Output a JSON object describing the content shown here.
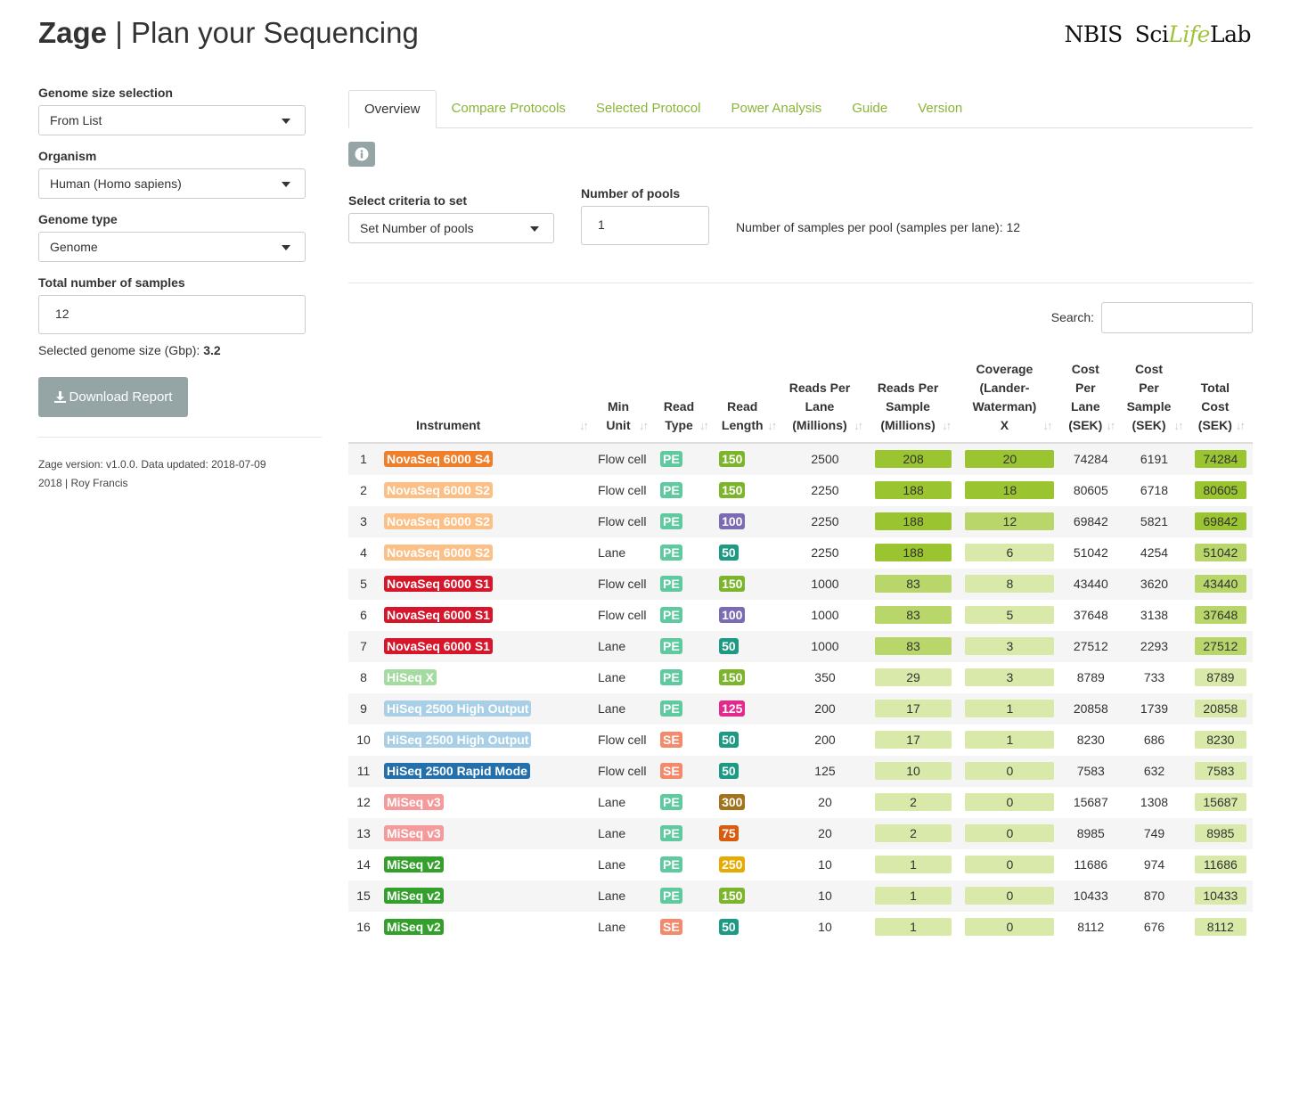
{
  "header": {
    "app_name": "Zage",
    "separator": " | ",
    "subtitle": "Plan your Sequencing",
    "logo_nbis": "NBIS",
    "logo_sci": "Sci",
    "logo_life": "Life",
    "logo_lab": "Lab"
  },
  "sidebar": {
    "genome_size_label": "Genome size selection",
    "genome_size_value": "From List",
    "organism_label": "Organism",
    "organism_value": "Human (Homo sapiens)",
    "genome_type_label": "Genome type",
    "genome_type_value": "Genome",
    "samples_label": "Total number of samples",
    "samples_value": "12",
    "genome_size_text": "Selected genome size (Gbp): ",
    "genome_size_number": "3.2",
    "download_label": "Download Report",
    "version_line1": "Zage version: v1.0.0. Data updated: 2018-07-09",
    "version_line2": "2018 | Roy Francis"
  },
  "tabs": [
    "Overview",
    "Compare Protocols",
    "Selected Protocol",
    "Power Analysis",
    "Guide",
    "Version"
  ],
  "controls": {
    "criteria_label": "Select criteria to set",
    "criteria_value": "Set Number of pools",
    "pools_label": "Number of pools",
    "pools_value": "1",
    "pool_note": "Number of samples per pool (samples per lane): 12"
  },
  "search_label": "Search:",
  "table": {
    "headers": [
      "Instrument",
      "Min Unit",
      "Read Type",
      "Read Length",
      "Reads Per Lane (Millions)",
      "Reads Per Sample (Millions)",
      "Coverage (Lander-Waterman) X",
      "Cost Per Lane (SEK)",
      "Cost Per Sample (SEK)",
      "Total Cost (SEK)"
    ],
    "rows": [
      {
        "idx": "1",
        "instrument": "NovaSeq 6000 S4",
        "inst_color": "#f07f2a",
        "min_unit": "Flow cell",
        "read_type": "PE",
        "rt_color": "#5fcaa0",
        "read_length": "150",
        "rl_color": "#7cb52b",
        "reads_per_lane": "2500",
        "reads_per_sample": "208",
        "rps_level": 1,
        "coverage": "20",
        "cov_level": 1,
        "cost_per_lane": "74284",
        "cost_per_sample": "6191",
        "total_cost": "74284",
        "tc_level": 1
      },
      {
        "idx": "2",
        "instrument": "NovaSeq 6000 S2",
        "inst_color": "#fcbf86",
        "min_unit": "Flow cell",
        "read_type": "PE",
        "rt_color": "#5fcaa0",
        "read_length": "150",
        "rl_color": "#7cb52b",
        "reads_per_lane": "2250",
        "reads_per_sample": "188",
        "rps_level": 1,
        "coverage": "18",
        "cov_level": 1,
        "cost_per_lane": "80605",
        "cost_per_sample": "6718",
        "total_cost": "80605",
        "tc_level": 1
      },
      {
        "idx": "3",
        "instrument": "NovaSeq 6000 S2",
        "inst_color": "#fcbf86",
        "min_unit": "Flow cell",
        "read_type": "PE",
        "rt_color": "#5fcaa0",
        "read_length": "100",
        "rl_color": "#7b6bb2",
        "reads_per_lane": "2250",
        "reads_per_sample": "188",
        "rps_level": 1,
        "coverage": "12",
        "cov_level": 2,
        "cost_per_lane": "69842",
        "cost_per_sample": "5821",
        "total_cost": "69842",
        "tc_level": 1
      },
      {
        "idx": "4",
        "instrument": "NovaSeq 6000 S2",
        "inst_color": "#fcbf86",
        "min_unit": "Lane",
        "read_type": "PE",
        "rt_color": "#5fcaa0",
        "read_length": "50",
        "rl_color": "#1c9a84",
        "reads_per_lane": "2250",
        "reads_per_sample": "188",
        "rps_level": 1,
        "coverage": "6",
        "cov_level": 3,
        "cost_per_lane": "51042",
        "cost_per_sample": "4254",
        "total_cost": "51042",
        "tc_level": 2
      },
      {
        "idx": "5",
        "instrument": "NovaSeq 6000 S1",
        "inst_color": "#d6162a",
        "min_unit": "Flow cell",
        "read_type": "PE",
        "rt_color": "#5fcaa0",
        "read_length": "150",
        "rl_color": "#7cb52b",
        "reads_per_lane": "1000",
        "reads_per_sample": "83",
        "rps_level": 2,
        "coverage": "8",
        "cov_level": 3,
        "cost_per_lane": "43440",
        "cost_per_sample": "3620",
        "total_cost": "43440",
        "tc_level": 2
      },
      {
        "idx": "6",
        "instrument": "NovaSeq 6000 S1",
        "inst_color": "#d6162a",
        "min_unit": "Flow cell",
        "read_type": "PE",
        "rt_color": "#5fcaa0",
        "read_length": "100",
        "rl_color": "#7b6bb2",
        "reads_per_lane": "1000",
        "reads_per_sample": "83",
        "rps_level": 2,
        "coverage": "5",
        "cov_level": 3,
        "cost_per_lane": "37648",
        "cost_per_sample": "3138",
        "total_cost": "37648",
        "tc_level": 2
      },
      {
        "idx": "7",
        "instrument": "NovaSeq 6000 S1",
        "inst_color": "#d6162a",
        "min_unit": "Lane",
        "read_type": "PE",
        "rt_color": "#5fcaa0",
        "read_length": "50",
        "rl_color": "#1c9a84",
        "reads_per_lane": "1000",
        "reads_per_sample": "83",
        "rps_level": 2,
        "coverage": "3",
        "cov_level": 3,
        "cost_per_lane": "27512",
        "cost_per_sample": "2293",
        "total_cost": "27512",
        "tc_level": 2
      },
      {
        "idx": "8",
        "instrument": "HiSeq X",
        "inst_color": "#a5dba0",
        "min_unit": "Lane",
        "read_type": "PE",
        "rt_color": "#5fcaa0",
        "read_length": "150",
        "rl_color": "#7cb52b",
        "reads_per_lane": "350",
        "reads_per_sample": "29",
        "rps_level": 3,
        "coverage": "3",
        "cov_level": 3,
        "cost_per_lane": "8789",
        "cost_per_sample": "733",
        "total_cost": "8789",
        "tc_level": 3
      },
      {
        "idx": "9",
        "instrument": "HiSeq 2500 High Output",
        "inst_color": "#a8cfe6",
        "min_unit": "Lane",
        "read_type": "PE",
        "rt_color": "#5fcaa0",
        "read_length": "125",
        "rl_color": "#e3298c",
        "reads_per_lane": "200",
        "reads_per_sample": "17",
        "rps_level": 3,
        "coverage": "1",
        "cov_level": 3,
        "cost_per_lane": "20858",
        "cost_per_sample": "1739",
        "total_cost": "20858",
        "tc_level": 3
      },
      {
        "idx": "10",
        "instrument": "HiSeq 2500 High Output",
        "inst_color": "#a8cfe6",
        "min_unit": "Flow cell",
        "read_type": "SE",
        "rt_color": "#f5896b",
        "read_length": "50",
        "rl_color": "#1c9a84",
        "reads_per_lane": "200",
        "reads_per_sample": "17",
        "rps_level": 3,
        "coverage": "1",
        "cov_level": 3,
        "cost_per_lane": "8230",
        "cost_per_sample": "686",
        "total_cost": "8230",
        "tc_level": 3
      },
      {
        "idx": "11",
        "instrument": "HiSeq 2500 Rapid Mode",
        "inst_color": "#2370ac",
        "min_unit": "Flow cell",
        "read_type": "SE",
        "rt_color": "#f5896b",
        "read_length": "50",
        "rl_color": "#1c9a84",
        "reads_per_lane": "125",
        "reads_per_sample": "10",
        "rps_level": 3,
        "coverage": "0",
        "cov_level": 3,
        "cost_per_lane": "7583",
        "cost_per_sample": "632",
        "total_cost": "7583",
        "tc_level": 3
      },
      {
        "idx": "12",
        "instrument": "MiSeq v3",
        "inst_color": "#f49a9a",
        "min_unit": "Lane",
        "read_type": "PE",
        "rt_color": "#5fcaa0",
        "read_length": "300",
        "rl_color": "#a3721d",
        "reads_per_lane": "20",
        "reads_per_sample": "2",
        "rps_level": 3,
        "coverage": "0",
        "cov_level": 3,
        "cost_per_lane": "15687",
        "cost_per_sample": "1308",
        "total_cost": "15687",
        "tc_level": 3
      },
      {
        "idx": "13",
        "instrument": "MiSeq v3",
        "inst_color": "#f49a9a",
        "min_unit": "Lane",
        "read_type": "PE",
        "rt_color": "#5fcaa0",
        "read_length": "75",
        "rl_color": "#d95b0e",
        "reads_per_lane": "20",
        "reads_per_sample": "2",
        "rps_level": 3,
        "coverage": "0",
        "cov_level": 3,
        "cost_per_lane": "8985",
        "cost_per_sample": "749",
        "total_cost": "8985",
        "tc_level": 3
      },
      {
        "idx": "14",
        "instrument": "MiSeq v2",
        "inst_color": "#33a02c",
        "min_unit": "Lane",
        "read_type": "PE",
        "rt_color": "#5fcaa0",
        "read_length": "250",
        "rl_color": "#e6ab02",
        "reads_per_lane": "10",
        "reads_per_sample": "1",
        "rps_level": 3,
        "coverage": "0",
        "cov_level": 3,
        "cost_per_lane": "11686",
        "cost_per_sample": "974",
        "total_cost": "11686",
        "tc_level": 3
      },
      {
        "idx": "15",
        "instrument": "MiSeq v2",
        "inst_color": "#33a02c",
        "min_unit": "Lane",
        "read_type": "PE",
        "rt_color": "#5fcaa0",
        "read_length": "150",
        "rl_color": "#7cb52b",
        "reads_per_lane": "10",
        "reads_per_sample": "1",
        "rps_level": 3,
        "coverage": "0",
        "cov_level": 3,
        "cost_per_lane": "10433",
        "cost_per_sample": "870",
        "total_cost": "10433",
        "tc_level": 3
      },
      {
        "idx": "16",
        "instrument": "MiSeq v2",
        "inst_color": "#33a02c",
        "min_unit": "Lane",
        "read_type": "SE",
        "rt_color": "#f5896b",
        "read_length": "50",
        "rl_color": "#1c9a84",
        "reads_per_lane": "10",
        "reads_per_sample": "1",
        "rps_level": 3,
        "coverage": "0",
        "cov_level": 3,
        "cost_per_lane": "8112",
        "cost_per_sample": "676",
        "total_cost": "8112",
        "tc_level": 3
      }
    ]
  }
}
